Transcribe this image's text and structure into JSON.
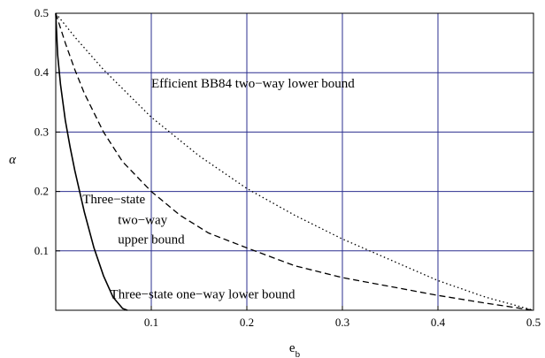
{
  "chart_data": {
    "type": "line",
    "title": "",
    "xlabel": "e",
    "xlabel_sub": "b",
    "ylabel": "α",
    "xlim": [
      0,
      0.5
    ],
    "ylim": [
      0,
      0.5
    ],
    "xticks": [
      0.1,
      0.2,
      0.3,
      0.4,
      0.5
    ],
    "xtick_labels": [
      "0.1",
      "0.2",
      "0.3",
      "0.4",
      "0.5"
    ],
    "yticks": [
      0.1,
      0.2,
      0.3,
      0.4,
      0.5
    ],
    "ytick_labels": [
      "0.1",
      "0.2",
      "0.3",
      "0.4",
      "0.5"
    ],
    "grid": true,
    "grid_color": "#2b2f8f",
    "series": [
      {
        "style": "solid",
        "x": [
          0.0,
          0.002,
          0.005,
          0.01,
          0.015,
          0.02,
          0.03,
          0.04,
          0.05,
          0.06,
          0.07,
          0.075
        ],
        "y": [
          0.5,
          0.43,
          0.38,
          0.32,
          0.275,
          0.235,
          0.165,
          0.105,
          0.058,
          0.022,
          0.003,
          0.0
        ]
      },
      {
        "style": "dashed",
        "x": [
          0.0,
          0.01,
          0.02,
          0.03,
          0.05,
          0.07,
          0.1,
          0.13,
          0.16,
          0.2,
          0.25,
          0.3,
          0.35,
          0.4,
          0.45,
          0.5
        ],
        "y": [
          0.5,
          0.45,
          0.405,
          0.365,
          0.3,
          0.25,
          0.2,
          0.16,
          0.13,
          0.105,
          0.075,
          0.055,
          0.04,
          0.025,
          0.012,
          0.0
        ]
      },
      {
        "style": "dotted",
        "x": [
          0.0,
          0.02,
          0.05,
          0.1,
          0.15,
          0.2,
          0.25,
          0.3,
          0.35,
          0.4,
          0.45,
          0.5
        ],
        "y": [
          0.5,
          0.46,
          0.405,
          0.325,
          0.26,
          0.205,
          0.16,
          0.12,
          0.085,
          0.05,
          0.022,
          0.0
        ]
      }
    ],
    "annotations": [
      {
        "text": "Efficient BB84 two−way lower bound",
        "x": 0.1,
        "y": 0.375
      },
      {
        "text": "Three−state",
        "x": 0.028,
        "y": 0.18
      },
      {
        "text": "two−way",
        "x": 0.065,
        "y": 0.145
      },
      {
        "text": "upper bound",
        "x": 0.065,
        "y": 0.112
      },
      {
        "text": "Three−state one−way lower bound",
        "x": 0.057,
        "y": 0.02
      }
    ]
  }
}
